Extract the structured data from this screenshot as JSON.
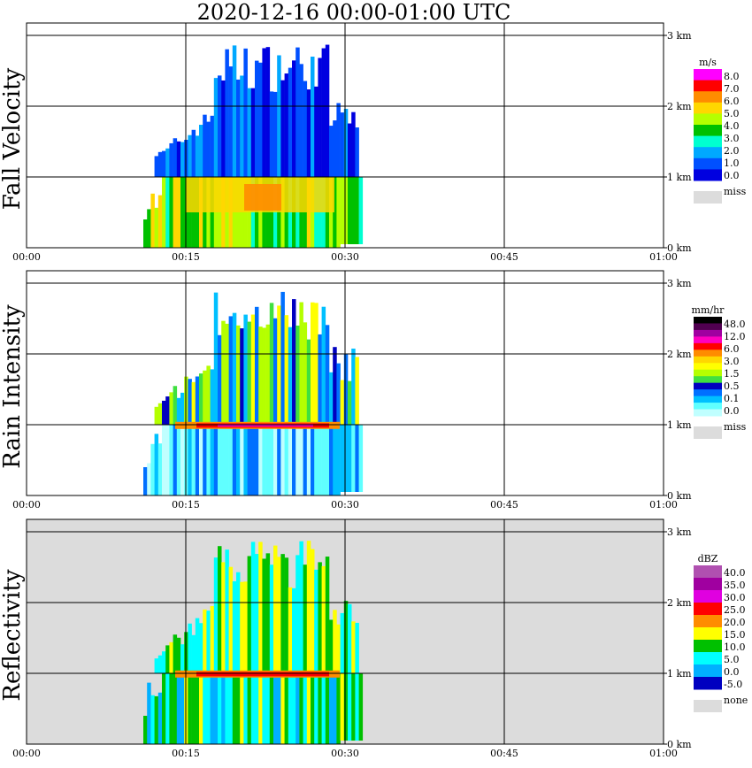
{
  "title": "2020-12-16   00:00-01:00 UTC",
  "time_ticks": [
    "00:00",
    "00:15",
    "00:30",
    "00:45",
    "01:00"
  ],
  "height_ticks": [
    "0 km",
    "1 km",
    "2 km",
    "3 km"
  ],
  "chart_data": [
    {
      "type": "heatmap",
      "ylabel": "Fall Velocity",
      "legend_unit": "m/s",
      "legend_values": [
        "8.0",
        "7.0",
        "6.0",
        "5.0",
        "4.0",
        "3.0",
        "2.0",
        "1.0",
        "0.0"
      ],
      "legend_colors": [
        "#ff00ff",
        "#ff0000",
        "#ff8c00",
        "#ffd700",
        "#b5ff00",
        "#00c000",
        "#00ffd0",
        "#00a8ff",
        "#0050ff",
        "#0000e0"
      ],
      "missing_label": "miss",
      "missing_color": "#dcdcdc",
      "background": "#ffffff"
    },
    {
      "type": "heatmap",
      "ylabel": "Rain Intensity",
      "legend_unit": "mm/hr",
      "legend_values": [
        "48.0",
        "12.0",
        "6.0",
        "3.0",
        "1.5",
        "0.5",
        "0.1",
        "0.0"
      ],
      "legend_colors": [
        "#000000",
        "#500050",
        "#a000a0",
        "#ff00c0",
        "#ff0000",
        "#ff8c00",
        "#ffd700",
        "#ffff00",
        "#b5ff00",
        "#40e040",
        "#0000c0",
        "#0070ff",
        "#00c0ff",
        "#60ffff",
        "#c0ffff"
      ],
      "missing_label": "miss",
      "missing_color": "#dcdcdc",
      "background": "#ffffff"
    },
    {
      "type": "heatmap",
      "ylabel": "Reflectivity",
      "legend_unit": "dBZ",
      "legend_values": [
        "40.0",
        "35.0",
        "30.0",
        "25.0",
        "20.0",
        "15.0",
        "10.0",
        "5.0",
        "0.0",
        "-5.0"
      ],
      "legend_colors": [
        "#b050b0",
        "#a000a0",
        "#e000e0",
        "#ff0000",
        "#ff8c00",
        "#ffff00",
        "#00c000",
        "#00ffff",
        "#00b0ff",
        "#0000c0"
      ],
      "missing_label": "none",
      "missing_color": "#dcdcdc",
      "background": "#dcdcdc"
    }
  ]
}
